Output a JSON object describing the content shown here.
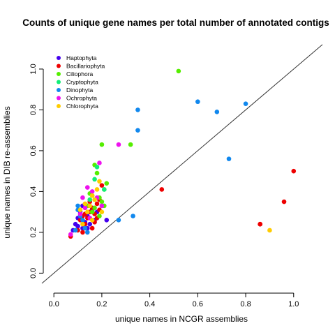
{
  "chart_data": {
    "type": "scatter",
    "title": "Counts of unique gene names per total number of annotated contigs",
    "xlabel": "unique names in NCGR assemblies",
    "ylabel": "unique names in DIB re-assemblies",
    "xlim": [
      -0.05,
      1.12
    ],
    "ylim": [
      -0.05,
      1.14
    ],
    "xticks": [
      0.0,
      0.2,
      0.4,
      0.6,
      0.8,
      1.0
    ],
    "xtick_labels": [
      "0.0",
      "0.2",
      "0.4",
      "0.6",
      "0.8",
      "1.0"
    ],
    "yticks": [
      0.0,
      0.2,
      0.4,
      0.6,
      0.8,
      1.0
    ],
    "ytick_labels": [
      "0.0",
      "0.2",
      "0.4",
      "0.6",
      "0.8",
      "1.0"
    ],
    "grid": false,
    "legend_position": "top-left",
    "reference_line": {
      "slope": 1,
      "intercept": 0,
      "color": "#333333"
    },
    "series": [
      {
        "name": "Haptophyta",
        "color": "#4400ee",
        "points": [
          [
            0.08,
            0.21
          ],
          [
            0.09,
            0.24
          ],
          [
            0.1,
            0.27
          ],
          [
            0.11,
            0.3
          ],
          [
            0.12,
            0.22
          ],
          [
            0.13,
            0.25
          ],
          [
            0.14,
            0.28
          ],
          [
            0.15,
            0.24
          ],
          [
            0.16,
            0.31
          ],
          [
            0.17,
            0.26
          ],
          [
            0.12,
            0.33
          ],
          [
            0.1,
            0.23
          ],
          [
            0.14,
            0.22
          ],
          [
            0.22,
            0.26
          ],
          [
            0.18,
            0.3
          ]
        ]
      },
      {
        "name": "Bacillariophyta",
        "color": "#ee0000",
        "points": [
          [
            0.07,
            0.18
          ],
          [
            0.1,
            0.21
          ],
          [
            0.12,
            0.2
          ],
          [
            0.13,
            0.24
          ],
          [
            0.14,
            0.27
          ],
          [
            0.15,
            0.3
          ],
          [
            0.16,
            0.32
          ],
          [
            0.17,
            0.29
          ],
          [
            0.18,
            0.34
          ],
          [
            0.19,
            0.31
          ],
          [
            0.2,
            0.43
          ],
          [
            0.15,
            0.35
          ],
          [
            0.13,
            0.29
          ],
          [
            0.11,
            0.26
          ],
          [
            0.17,
            0.25
          ],
          [
            0.18,
            0.27
          ],
          [
            0.19,
            0.36
          ],
          [
            0.16,
            0.22
          ],
          [
            0.14,
            0.33
          ],
          [
            0.12,
            0.28
          ],
          [
            0.45,
            0.41
          ],
          [
            0.86,
            0.24
          ],
          [
            0.86,
            0.24
          ],
          [
            0.86,
            0.24
          ],
          [
            0.96,
            0.35
          ],
          [
            1.0,
            0.5
          ]
        ]
      },
      {
        "name": "Ciliophora",
        "color": "#55ee00",
        "points": [
          [
            0.2,
            0.63
          ],
          [
            0.32,
            0.63
          ],
          [
            0.52,
            0.99
          ],
          [
            0.17,
            0.53
          ],
          [
            0.18,
            0.49
          ],
          [
            0.22,
            0.44
          ],
          [
            0.21,
            0.41
          ],
          [
            0.19,
            0.37
          ],
          [
            0.15,
            0.39
          ],
          [
            0.2,
            0.35
          ],
          [
            0.17,
            0.32
          ],
          [
            0.14,
            0.33
          ],
          [
            0.16,
            0.3
          ],
          [
            0.21,
            0.33
          ],
          [
            0.19,
            0.28
          ]
        ]
      },
      {
        "name": "Cryptophyta",
        "color": "#11ee77",
        "points": [
          [
            0.21,
            0.41
          ],
          [
            0.18,
            0.52
          ],
          [
            0.17,
            0.46
          ],
          [
            0.2,
            0.33
          ],
          [
            0.15,
            0.36
          ],
          [
            0.16,
            0.38
          ]
        ]
      },
      {
        "name": "Dinophyta",
        "color": "#1188ee",
        "points": [
          [
            0.35,
            0.8
          ],
          [
            0.35,
            0.7
          ],
          [
            0.6,
            0.84
          ],
          [
            0.68,
            0.79
          ],
          [
            0.8,
            0.83
          ],
          [
            0.73,
            0.56
          ],
          [
            0.33,
            0.28
          ],
          [
            0.27,
            0.26
          ],
          [
            0.1,
            0.31
          ],
          [
            0.11,
            0.28
          ],
          [
            0.12,
            0.26
          ],
          [
            0.13,
            0.22
          ],
          [
            0.14,
            0.2
          ],
          [
            0.09,
            0.21
          ],
          [
            0.1,
            0.33
          ]
        ]
      },
      {
        "name": "Ochrophyta",
        "color": "#ee11ee",
        "points": [
          [
            0.27,
            0.63
          ],
          [
            0.19,
            0.54
          ],
          [
            0.14,
            0.42
          ],
          [
            0.12,
            0.37
          ],
          [
            0.16,
            0.4
          ],
          [
            0.07,
            0.19
          ],
          [
            0.13,
            0.32
          ],
          [
            0.18,
            0.37
          ],
          [
            0.11,
            0.29
          ],
          [
            0.15,
            0.27
          ],
          [
            0.2,
            0.33
          ]
        ]
      },
      {
        "name": "Chlorophyta",
        "color": "#ffcc00",
        "points": [
          [
            0.9,
            0.21
          ],
          [
            0.19,
            0.45
          ],
          [
            0.17,
            0.36
          ],
          [
            0.16,
            0.38
          ],
          [
            0.18,
            0.41
          ],
          [
            0.2,
            0.3
          ],
          [
            0.14,
            0.3
          ],
          [
            0.13,
            0.34
          ],
          [
            0.12,
            0.24
          ],
          [
            0.15,
            0.33
          ],
          [
            0.11,
            0.31
          ],
          [
            0.16,
            0.26
          ]
        ]
      }
    ]
  }
}
